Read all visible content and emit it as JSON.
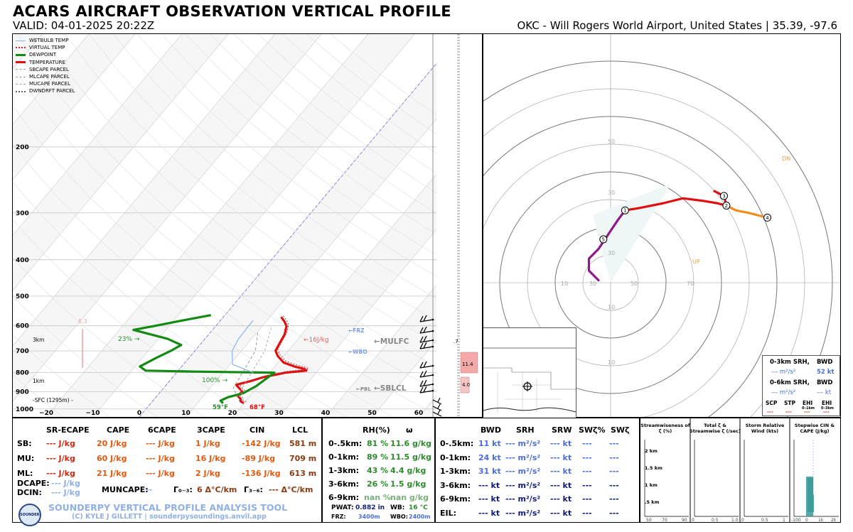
{
  "header": {
    "title": "ACARS AIRCRAFT OBSERVATION VERTICAL PROFILE",
    "valid": "VALID: 04-01-2025 20:22Z",
    "station": "OKC - Will Rogers World Airport, United States | 35.39, -97.6"
  },
  "legend": [
    {
      "label": "WETBULB TEMP",
      "color": "#8ab4f0",
      "style": "solid"
    },
    {
      "label": "VIRTUAL TEMP",
      "color": "#dd2222",
      "style": "dotted"
    },
    {
      "label": "DEWPOINT",
      "color": "#138a13",
      "style": "thick"
    },
    {
      "label": "TEMPERATURE",
      "color": "#e01010",
      "style": "thick"
    },
    {
      "label": "SBCAPE PARCEL",
      "color": "#999999",
      "style": "dashed"
    },
    {
      "label": "MLCAPE PARCEL",
      "color": "#999999",
      "style": "dashed"
    },
    {
      "label": "MUCAPE PARCEL",
      "color": "#999999",
      "style": "dashed"
    },
    {
      "label": "DWNDRFT PARCEL",
      "color": "#666666",
      "style": "dotted"
    }
  ],
  "chart_data": [
    {
      "type": "line",
      "title": "Skew-T log-P",
      "pressure_ticks": [
        200,
        300,
        400,
        500,
        600,
        700,
        800,
        900,
        1000
      ],
      "temp_ticks": [
        "−20",
        "−10",
        "0",
        "10",
        "20",
        "30",
        "40",
        "50",
        "60"
      ],
      "xlim": [
        -25,
        75
      ],
      "ylim": [
        1050,
        100
      ],
      "series": [
        {
          "name": "TEMPERATURE",
          "units": "C",
          "points": [
            [
              20,
              965
            ],
            [
              19,
              955
            ],
            [
              18.5,
              940
            ],
            [
              17.2,
              922
            ],
            [
              17.6,
              900
            ],
            [
              16.4,
              882
            ],
            [
              15.0,
              862
            ],
            [
              17.5,
              842
            ],
            [
              19.5,
              822
            ],
            [
              23.4,
              800
            ],
            [
              27.5,
              790
            ],
            [
              26.8,
              782
            ],
            [
              24.5,
              772
            ],
            [
              21.2,
              752
            ],
            [
              18.7,
              722
            ],
            [
              17.3,
              699
            ],
            [
              17.0,
              679
            ],
            [
              16.7,
              659
            ],
            [
              16.3,
              632
            ],
            [
              15.2,
              601
            ],
            [
              14.0,
              585
            ],
            [
              12.4,
              568
            ]
          ]
        },
        {
          "name": "DEWPOINT",
          "units": "C",
          "points": [
            [
              15.5,
              965
            ],
            [
              14.5,
              950
            ],
            [
              15.5,
              930
            ],
            [
              18.0,
              908
            ],
            [
              19.5,
              870
            ],
            [
              21.0,
              800
            ],
            [
              4.0,
              795
            ],
            [
              -7,
              790
            ],
            [
              -9.0,
              770
            ],
            [
              -7.0,
              730
            ],
            [
              -5.2,
              700
            ],
            [
              -4.0,
              675
            ],
            [
              -8.0,
              650
            ],
            [
              -17.0,
              615
            ],
            [
              -13.0,
              600
            ],
            [
              -8.0,
              580
            ],
            [
              -3.0,
              562
            ]
          ]
        },
        {
          "name": "WETBULB TEMP",
          "units": "C",
          "points": [
            [
              16.5,
              800
            ],
            [
              10.5,
              760
            ],
            [
              8.0,
              700
            ],
            [
              7.2,
              650
            ],
            [
              7.0,
              580
            ]
          ]
        }
      ],
      "annotations": [
        "8.3",
        "23% →",
        "100% →",
        "←16J/kg",
        "←FRZ",
        "←WBO",
        "←MULFC",
        "←PBL",
        "←SBLCL",
        "3km",
        "1km",
        "-SFC (1295m) -",
        "59°F",
        "68°F"
      ]
    },
    {
      "type": "line",
      "title": "Hodograph",
      "rings_kt": [
        10,
        20,
        30,
        40,
        50,
        60,
        70,
        80
      ],
      "ring_labels": [
        "10",
        "30",
        "50",
        "70",
        "10",
        "30",
        "10",
        "30",
        "50"
      ],
      "motion_labels": [
        "DN",
        "UP"
      ],
      "km_markers": [
        "1",
        "2",
        "3",
        "4",
        "5"
      ],
      "series": [
        {
          "name": "0-1km",
          "color": "#8b1a8b",
          "points": [
            [
              -5,
              1
            ],
            [
              -9,
              5
            ],
            [
              -9,
              10
            ],
            [
              -5,
              14
            ],
            [
              -1,
              20
            ],
            [
              3,
              26
            ],
            [
              6,
              30
            ]
          ]
        },
        {
          "name": "1-3km",
          "color": "#e01010",
          "points": [
            [
              6,
              30
            ],
            [
              12,
              31
            ],
            [
              22,
              33
            ],
            [
              30,
              35
            ],
            [
              38,
              34
            ],
            [
              44,
              33
            ],
            [
              48,
              32
            ],
            [
              47,
              36
            ],
            [
              43,
              38
            ]
          ]
        },
        {
          "name": "3-4km",
          "color": "#f08c1a",
          "points": [
            [
              48,
              32
            ],
            [
              52,
              30
            ],
            [
              57,
              29
            ],
            [
              61,
              28
            ],
            [
              65,
              27
            ]
          ]
        }
      ]
    },
    {
      "type": "bar",
      "title": "Stepwise CIN & CAPE",
      "categories": [
        ".5 km",
        "1 km",
        "1.5 km"
      ],
      "values": [
        20,
        18,
        0
      ]
    }
  ],
  "hodo_box": {
    "r1_label": "0-3km SRH,",
    "r1_bwd": "BWD",
    "r1_srh": "--- m²/s²",
    "r1_bwd_val": "52 kt",
    "r2_label": "0-6km SRH,",
    "r2_bwd": "BWD",
    "r2_srh": "--- m²/s²",
    "r2_bwd_val": "--- kt",
    "params": [
      "SCP",
      "STP",
      "EHI",
      "EHI"
    ],
    "param_sub": [
      "",
      "",
      "0–1km",
      "0–3km"
    ],
    "param_vals": [
      "---",
      "---",
      "---",
      "---"
    ]
  },
  "inset": {
    "val1": "11.4",
    "val2": "4.0",
    "val3": ".7"
  },
  "thermo": {
    "headers": [
      "SR-ECAPE",
      "CAPE",
      "6CAPE",
      "3CAPE",
      "CIN",
      "LCL"
    ],
    "rows": [
      {
        "label": "SB:",
        "values": [
          "--- J/kg",
          "20 J/kg",
          "--- J/kg",
          "1 J/kg",
          "-142 J/kg",
          "581 m"
        ]
      },
      {
        "label": "MU:",
        "values": [
          "--- J/kg",
          "60 J/kg",
          "--- J/kg",
          "16 J/kg",
          "-89 J/kg",
          "709 m"
        ]
      },
      {
        "label": "ML:",
        "values": [
          "--- J/kg",
          "21 J/kg",
          "--- J/kg",
          "2 J/kg",
          "-136 J/kg",
          "613 m"
        ]
      }
    ],
    "dcape_label": "DCAPE:",
    "dcape": "--- J/kg",
    "dcin_label": "DCIN:",
    "dcin": "--- J/kg",
    "muncape_label": "MUNCAPE:",
    "muncape": "--",
    "g03_label": "Γ₀₋₃:",
    "g03": "6 Δ°C/km",
    "g36_label": "Γ₃₋₆:",
    "g36": "--- Δ°C/km",
    "brand": "SOUNDERPY VERTICAL PROFILE ANALYSIS TOOL",
    "credit": "(C) KYLE J GILLETT | sounderpysoundings.anvil.app",
    "logo": "SOUNDER PY"
  },
  "moisture": {
    "headers": [
      "RH(%)",
      "ω"
    ],
    "rows": [
      {
        "label": "0-.5km:",
        "rh": "81 %",
        "w": "11.6 g/kg"
      },
      {
        "label": "0-1km:",
        "rh": "89 %",
        "w": "11.5 g/kg"
      },
      {
        "label": "1-3km:",
        "rh": "43 %",
        "w": "4.4 g/kg"
      },
      {
        "label": "3-6km:",
        "rh": "26 %",
        "w": "1.5 g/kg"
      },
      {
        "label": "6-9km:",
        "rh": "nan %",
        "w": "nan g/kg"
      }
    ],
    "pwat_label": "PWAT:",
    "pwat": "0.882 in",
    "wb_label": "WB:",
    "wb": "16 °C",
    "frz_label": "FRZ:",
    "frz": "3400m",
    "wbo_label": "WBO:",
    "wbo": "2400m"
  },
  "kinematic": {
    "headers": [
      "BWD",
      "SRH",
      "SRW",
      "SWζ%",
      "SWζ"
    ],
    "rows": [
      {
        "label": "0-.5km:",
        "bwd": "11 kt",
        "srh": "--- m²/s²",
        "srw": "--- kt",
        "swp": "---",
        "sw": "---"
      },
      {
        "label": "0-1km:",
        "bwd": "24 kt",
        "srh": "--- m²/s²",
        "srw": "--- kt",
        "swp": "---",
        "sw": "---"
      },
      {
        "label": "1-3km:",
        "bwd": "31 kt",
        "srh": "--- m²/s²",
        "srw": "--- kt",
        "swp": "---",
        "sw": "---"
      },
      {
        "label": "3-6km:",
        "bwd": "--- kt",
        "srh": "--- m²/s²",
        "srw": "--- kt",
        "swp": "---",
        "sw": "---"
      },
      {
        "label": "6-9km:",
        "bwd": "--- kt",
        "srh": "--- m²/s²",
        "srw": "--- kt",
        "swp": "---",
        "sw": "---"
      },
      {
        "label": "EIL:",
        "bwd": "--- kt",
        "srh": "--- m²/s²",
        "srw": "--- kt",
        "swp": "---",
        "sw": "---"
      }
    ]
  },
  "mini": {
    "p1_title": "Streamwiseness of ζ (%)",
    "p1_ticks": [
      "50",
      "70",
      "90"
    ],
    "p2_title": "Total ζ & Streamwise ζ (/sec)",
    "p2_ticks": [
      "0",
      "0.5",
      "1.0"
    ],
    "p3_title": "Storm Relative Wind (kts)",
    "p3_ticks": [
      "0",
      "0.5",
      "1"
    ],
    "p4_title": "Stepwise CIN & CAPE (J/kg)",
    "p4_ticks": [
      "-100",
      "0",
      "1k",
      "2k"
    ],
    "heights": [
      "2 km",
      "1.5 km",
      "1 km",
      ".5 km"
    ]
  }
}
